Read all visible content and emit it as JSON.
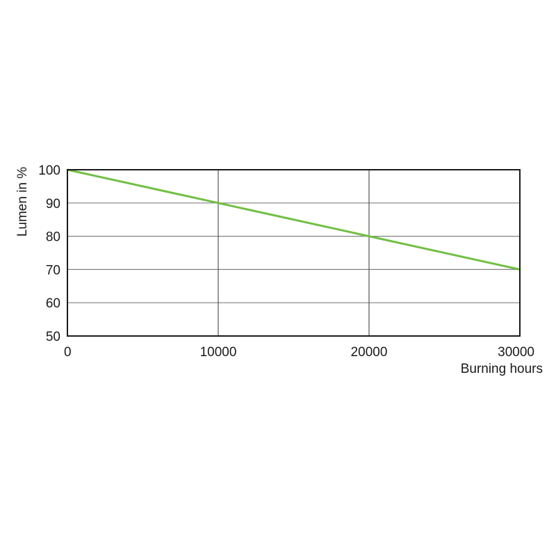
{
  "chart_data": {
    "type": "line",
    "title": "",
    "xlabel": "Burning hours",
    "ylabel": "Lumen in %",
    "xlim": [
      0,
      30000
    ],
    "ylim": [
      50,
      100
    ],
    "x_ticks": [
      "0",
      "10000",
      "20000",
      "30000"
    ],
    "y_ticks": [
      "50",
      "60",
      "70",
      "80",
      "90",
      "100"
    ],
    "grid": true,
    "series": [
      {
        "x": [
          0,
          10000,
          20000,
          30000
        ],
        "y": [
          100,
          90,
          80,
          70
        ],
        "color": "#72bf44"
      }
    ]
  }
}
